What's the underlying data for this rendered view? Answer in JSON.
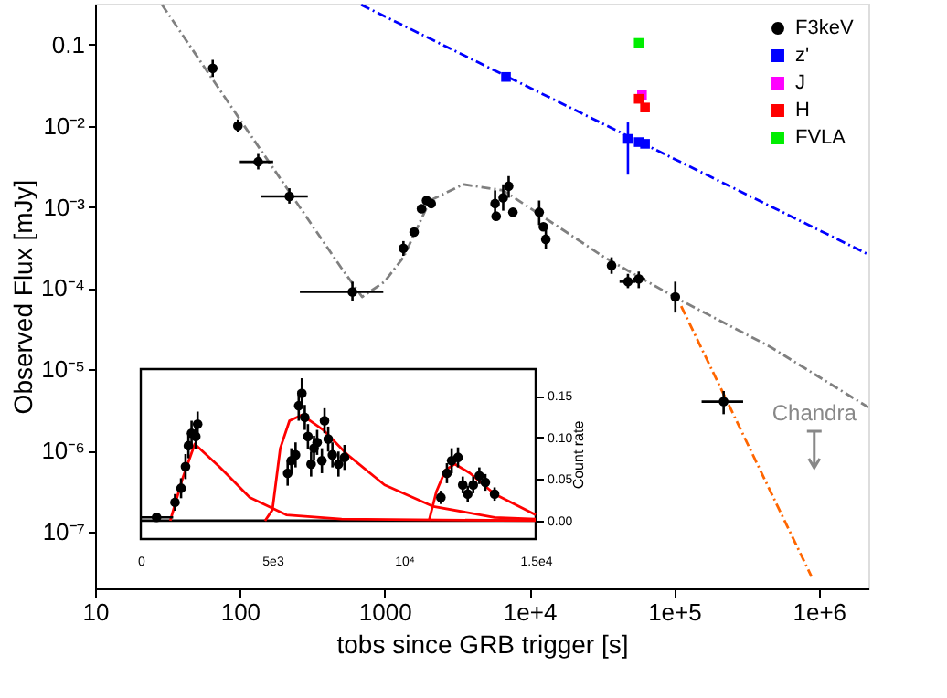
{
  "chart_data": [
    {
      "type": "scatter",
      "xlabel": "tobs since GRB trigger [s]",
      "ylabel": "Observed Flux [mJy]",
      "log": "xy",
      "grid": false,
      "legend": "top right",
      "xlim": [
        10,
        2200000
      ],
      "ylim": [
        2e-08,
        0.32
      ],
      "xticks": [
        10,
        100,
        1000,
        {
          "value": 10000,
          "label": "1e+4"
        },
        {
          "value": 100000,
          "label": "1e+5"
        },
        {
          "value": 1000000,
          "label": "1e+6"
        }
      ],
      "yticks": [
        0.1,
        {
          "value": 0.01,
          "label": "10⁻²"
        },
        {
          "value": 0.001,
          "label": "10⁻³"
        },
        {
          "value": 0.0001,
          "label": "10⁻⁴"
        },
        {
          "value": 1e-05,
          "label": "10⁻⁵"
        },
        {
          "value": 1e-06,
          "label": "10⁻⁶"
        },
        {
          "value": 1e-07,
          "label": "10⁻⁷"
        }
      ],
      "series": [
        {
          "type": "line",
          "color": "#808080",
          "line_style": "dashed",
          "x": [
            29,
            100,
            500,
            700,
            1000,
            1350,
            2060,
            3500,
            6600,
            33000,
            106000,
            460000,
            2200000
          ],
          "values": [
            0.31,
            0.012,
            0.00018,
            7.8e-05,
            0.00012,
            0.00024,
            0.0012,
            0.0019,
            0.0016,
            0.00024,
            7.4e-05,
            1.9e-05,
            3.4e-06
          ]
        },
        {
          "type": "line",
          "color": "#0000ff",
          "line_style": "dashed",
          "x": [
            690,
            2200000
          ],
          "values": [
            0.31,
            0.00026
          ]
        },
        {
          "type": "line",
          "color": "#ff6600",
          "line_style": "dashed",
          "x": [
            112000,
            890000
          ],
          "values": [
            6e-05,
            2.8e-08
          ]
        },
        {
          "name": "F3keV",
          "color": "#000000",
          "marker": "circle",
          "x": [
            65,
            97,
            134,
            220,
            600,
            1350,
            1600,
            1800,
            1950,
            2100,
            5800,
            5900,
            6600,
            7200,
            7700,
            11700,
            12500,
            13000,
            37000,
            48000,
            57000,
            102000,
            220000
          ],
          "values": [
            0.051,
            0.01,
            0.0036,
            0.00135,
            9e-05,
            0.00031,
            0.00049,
            0.00095,
            0.0012,
            0.0011,
            0.0011,
            0.00077,
            0.0013,
            0.0018,
            0.00086,
            0.00086,
            0.00057,
            0.0004,
            0.00019,
            0.00012,
            0.00013,
            7.8e-05,
            4e-06
          ],
          "errors": [
            [
              0.04,
              0.065
            ],
            [
              0.0085,
              0.012
            ],
            [
              0.0029,
              0.0045
            ],
            [
              0.0011,
              0.0017
            ],
            [
              7e-05,
              0.00012
            ],
            [
              0.00025,
              0.00038
            ],
            null,
            null,
            null,
            null,
            [
              0.0008,
              0.0016
            ],
            null,
            [
              0.0009,
              0.0019
            ],
            [
              0.0013,
              0.0024
            ],
            null,
            [
              0.0006,
              0.0012
            ],
            null,
            [
              0.0003,
              0.00053
            ],
            [
              0.00015,
              0.00024
            ],
            [
              0.0001,
              0.00015
            ],
            [
              0.0001,
              0.00016
            ],
            [
              5e-05,
              0.00012
            ],
            [
              2.8e-06,
              5.4e-06
            ]
          ],
          "xerrors": [
            null,
            null,
            [
              100,
              170
            ],
            [
              141,
              295
            ],
            [
              260,
              980
            ],
            null,
            null,
            null,
            null,
            null,
            null,
            null,
            null,
            null,
            null,
            null,
            null,
            null,
            null,
            [
              42000,
              54000
            ],
            [
              52000,
              63000
            ],
            null,
            [
              155000,
              300000
            ]
          ]
        },
        {
          "name": "z'",
          "color": "#0000ff",
          "marker": "square",
          "x": [
            6900,
            48000,
            57000,
            63000
          ],
          "values": [
            0.04,
            0.0069,
            0.0063,
            0.006
          ],
          "errors": [
            null,
            [
              0.0025,
              0.011
            ],
            null,
            null
          ]
        },
        {
          "name": "J",
          "color": "#ff00ff",
          "marker": "square",
          "x": [
            60000
          ],
          "values": [
            0.024
          ]
        },
        {
          "name": "H",
          "color": "#ff0000",
          "marker": "square",
          "x": [
            57000,
            63000
          ],
          "values": [
            0.0215,
            0.0168
          ]
        },
        {
          "name": "FVLA",
          "color": "#00ee00",
          "marker": "square",
          "x": [
            57000
          ],
          "values": [
            0.105
          ]
        }
      ],
      "annotations": [
        "Chandra"
      ]
    },
    {
      "type": "scatter",
      "y2label": "Count rate",
      "grid": false,
      "legend": false,
      "xlim": [
        0,
        15000
      ],
      "y2lim": [
        -0.022,
        0.182
      ],
      "xticks": [
        0,
        {
          "value": 5000,
          "label": "5e3"
        },
        {
          "value": 10000,
          "label": "10⁴"
        },
        {
          "value": 15000,
          "label": "1.5e4"
        }
      ],
      "y2ticks": [
        {
          "value": 0,
          "label": "0.00"
        },
        {
          "value": 0.05,
          "label": "0.05"
        },
        {
          "value": 0.1,
          "label": "0.10"
        },
        {
          "value": 0.15,
          "label": "0.15"
        }
      ],
      "series": [
        {
          "type": "line",
          "axis": "y2",
          "color": "#000000",
          "line_style": "solid",
          "x": [
            0,
            15000
          ],
          "values": [
            0,
            0
          ]
        },
        {
          "type": "line",
          "axis": "y2",
          "color": "#ff0000",
          "line_style": "solid",
          "x": [
            1120,
            1580,
            2050,
            2980,
            4140,
            5530,
            7630,
            15000
          ],
          "values": [
            0,
            0.05,
            0.092,
            0.065,
            0.028,
            0.007,
            0.002,
            0
          ]
        },
        {
          "type": "line",
          "axis": "y2",
          "color": "#ff0000",
          "line_style": "solid",
          "x": [
            4720,
            5000,
            5300,
            5650,
            6120,
            6930,
            7860,
            9260,
            11120,
            13440,
            15000
          ],
          "values": [
            0,
            0.013,
            0.087,
            0.12,
            0.127,
            0.109,
            0.079,
            0.043,
            0.017,
            0.004,
            0.002
          ]
        },
        {
          "type": "line",
          "axis": "y2",
          "color": "#ff0000",
          "line_style": "solid",
          "x": [
            10950,
            11230,
            11580,
            11930,
            12510,
            13440,
            15000
          ],
          "values": [
            0,
            0.035,
            0.061,
            0.068,
            0.057,
            0.032,
            0.007
          ]
        },
        {
          "axis": "y2",
          "color": "#000000",
          "marker": "circle",
          "x": [
            600,
            1300,
            1530,
            1700,
            1810,
            1930,
            2090,
            2160,
            5580,
            5720,
            5880,
            6000,
            6120,
            6230,
            6350,
            6470,
            6580,
            6700,
            6880,
            6980,
            7120,
            7280,
            7510,
            7740,
            11400,
            11630,
            11810,
            12050,
            12230,
            12420,
            12630,
            12860,
            13090,
            13440
          ],
          "values": [
            0.004,
            0.022,
            0.039,
            0.065,
            0.09,
            0.105,
            0.101,
            0.116,
            0.057,
            0.072,
            0.079,
            0.138,
            0.153,
            0.124,
            0.101,
            0.068,
            0.087,
            0.094,
            0.072,
            0.12,
            0.098,
            0.079,
            0.068,
            0.076,
            0.028,
            0.057,
            0.072,
            0.076,
            0.043,
            0.032,
            0.043,
            0.054,
            0.046,
            0.032
          ],
          "errors": [
            null,
            0.01,
            0.012,
            0.015,
            0.015,
            0.015,
            0.015,
            0.015,
            0.015,
            0.015,
            0.015,
            0.018,
            0.018,
            0.015,
            0.015,
            0.015,
            0.015,
            0.015,
            0.015,
            0.015,
            0.015,
            0.015,
            0.015,
            0.015,
            0.008,
            0.012,
            0.015,
            0.012,
            0.01,
            0.01,
            0.01,
            0.01,
            0.01,
            0.008
          ],
          "xerrors": [
            [
              0,
              1230
            ],
            null,
            null,
            null,
            null,
            null,
            null,
            null,
            null,
            null,
            null,
            null,
            null,
            null,
            null,
            null,
            null,
            null,
            null,
            null,
            null,
            null,
            null,
            null,
            null,
            null,
            null,
            null,
            null,
            null,
            null,
            null,
            null,
            null
          ]
        }
      ]
    }
  ]
}
